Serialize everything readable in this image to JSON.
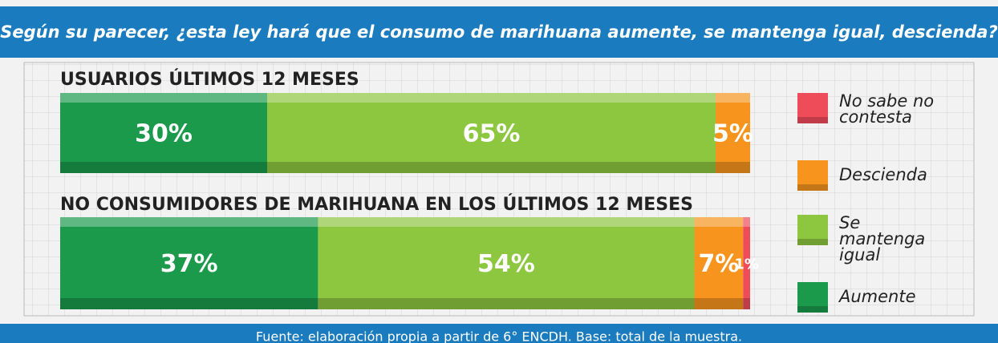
{
  "chart_data": {
    "type": "stacked-bar",
    "title": "Según su parecer, ¿esta ley hará que el consumo de marihuana aumente, se mantenga igual, descienda?",
    "categories": [
      "USUARIOS ÚLTIMOS 12 MESES",
      "NO CONSUMIDORES DE MARIHUANA EN LOS ÚLTIMOS 12 MESES"
    ],
    "series": [
      {
        "name": "Aumente",
        "color": "#1b9a4b",
        "values": [
          30,
          37
        ],
        "value_labels": [
          "30%",
          "37%"
        ]
      },
      {
        "name": "Se mantenga igual",
        "color": "#8dc63f",
        "values": [
          65,
          54
        ],
        "value_labels": [
          "65%",
          "54%"
        ]
      },
      {
        "name": "Descienda",
        "color": "#f7941d",
        "values": [
          5,
          7
        ],
        "value_labels": [
          "5%",
          "7%"
        ]
      },
      {
        "name": "No sabe no contesta",
        "color": "#ef4c5a",
        "values": [
          null,
          1
        ],
        "value_labels": [
          null,
          "1%"
        ]
      }
    ],
    "source": "Fuente: elaboración propia a partir de 6° ENCDH. Base: total de la muestra."
  }
}
